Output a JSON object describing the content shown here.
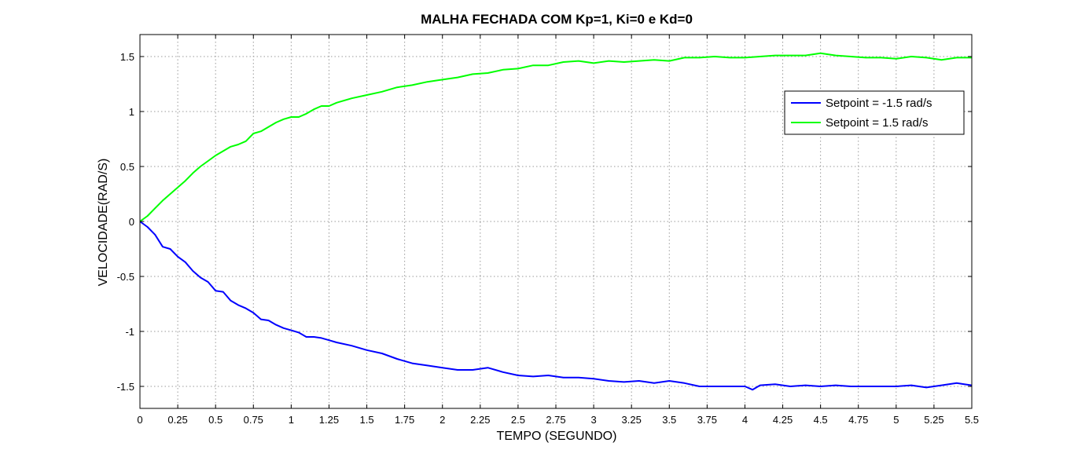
{
  "chart_data": {
    "type": "line",
    "title": "MALHA FECHADA COM Kp=1, Ki=0 e Kd=0",
    "xlabel": "TEMPO (SEGUNDO)",
    "ylabel": "VELOCIDADE(RAD/S)",
    "xlim": [
      0,
      5.5
    ],
    "ylim": [
      -1.7,
      1.7
    ],
    "xticks": [
      0,
      0.25,
      0.5,
      0.75,
      1,
      1.25,
      1.5,
      1.75,
      2,
      2.25,
      2.5,
      2.75,
      3,
      3.25,
      3.5,
      3.75,
      4,
      4.25,
      4.5,
      4.75,
      5,
      5.25,
      5.5
    ],
    "xtick_labels": [
      "0",
      "0.25",
      "0.5",
      "0.75",
      "1",
      "1.25",
      "1.5",
      "1.75",
      "2",
      "2.25",
      "2.5",
      "2.75",
      "3",
      "3.25",
      "3.5",
      "3.75",
      "4",
      "4.25",
      "4.5",
      "4.75",
      "5",
      "5.25",
      "5.5"
    ],
    "yticks": [
      -1.5,
      -1,
      -0.5,
      0,
      0.5,
      1,
      1.5
    ],
    "ytick_labels": [
      "-1.5",
      "-1",
      "-0.5",
      "0",
      "0.5",
      "1",
      "1.5"
    ],
    "grid": true,
    "legend_position": "top-right",
    "series": [
      {
        "name": "Setpoint = -1.5 rad/s",
        "color": "#0000ff",
        "x": [
          0,
          0.05,
          0.1,
          0.15,
          0.2,
          0.25,
          0.3,
          0.35,
          0.4,
          0.45,
          0.5,
          0.55,
          0.6,
          0.65,
          0.7,
          0.75,
          0.8,
          0.85,
          0.9,
          0.95,
          1,
          1.05,
          1.1,
          1.15,
          1.2,
          1.25,
          1.3,
          1.4,
          1.5,
          1.6,
          1.7,
          1.8,
          1.9,
          2,
          2.1,
          2.2,
          2.3,
          2.4,
          2.5,
          2.6,
          2.7,
          2.8,
          2.9,
          3,
          3.1,
          3.2,
          3.3,
          3.4,
          3.5,
          3.6,
          3.7,
          3.8,
          3.9,
          4,
          4.05,
          4.1,
          4.2,
          4.3,
          4.4,
          4.5,
          4.6,
          4.7,
          4.8,
          4.9,
          5,
          5.1,
          5.2,
          5.3,
          5.4,
          5.45,
          5.5
        ],
        "values": [
          0,
          -0.05,
          -0.12,
          -0.23,
          -0.25,
          -0.32,
          -0.37,
          -0.45,
          -0.51,
          -0.55,
          -0.63,
          -0.64,
          -0.72,
          -0.76,
          -0.79,
          -0.83,
          -0.89,
          -0.9,
          -0.94,
          -0.97,
          -0.99,
          -1.01,
          -1.05,
          -1.05,
          -1.06,
          -1.08,
          -1.1,
          -1.13,
          -1.17,
          -1.2,
          -1.25,
          -1.29,
          -1.31,
          -1.33,
          -1.35,
          -1.35,
          -1.33,
          -1.37,
          -1.4,
          -1.41,
          -1.4,
          -1.42,
          -1.42,
          -1.43,
          -1.45,
          -1.46,
          -1.45,
          -1.47,
          -1.45,
          -1.47,
          -1.5,
          -1.5,
          -1.5,
          -1.5,
          -1.53,
          -1.49,
          -1.48,
          -1.5,
          -1.49,
          -1.5,
          -1.49,
          -1.5,
          -1.5,
          -1.5,
          -1.5,
          -1.49,
          -1.51,
          -1.49,
          -1.47,
          -1.48,
          -1.49
        ]
      },
      {
        "name": "Setpoint = 1.5 rad/s",
        "color": "#00ff00",
        "x": [
          0,
          0.05,
          0.1,
          0.15,
          0.2,
          0.25,
          0.3,
          0.35,
          0.4,
          0.45,
          0.5,
          0.55,
          0.6,
          0.65,
          0.7,
          0.75,
          0.8,
          0.85,
          0.9,
          0.95,
          1,
          1.05,
          1.1,
          1.15,
          1.2,
          1.25,
          1.3,
          1.4,
          1.5,
          1.6,
          1.7,
          1.8,
          1.9,
          2,
          2.1,
          2.2,
          2.3,
          2.4,
          2.5,
          2.6,
          2.7,
          2.8,
          2.9,
          3,
          3.1,
          3.2,
          3.3,
          3.4,
          3.5,
          3.6,
          3.7,
          3.8,
          3.9,
          4,
          4.1,
          4.2,
          4.3,
          4.4,
          4.5,
          4.6,
          4.7,
          4.8,
          4.9,
          5,
          5.1,
          5.2,
          5.3,
          5.4,
          5.5
        ],
        "values": [
          0,
          0.05,
          0.12,
          0.19,
          0.25,
          0.31,
          0.37,
          0.44,
          0.5,
          0.55,
          0.6,
          0.64,
          0.68,
          0.7,
          0.73,
          0.8,
          0.82,
          0.86,
          0.9,
          0.93,
          0.95,
          0.95,
          0.98,
          1.02,
          1.05,
          1.05,
          1.08,
          1.12,
          1.15,
          1.18,
          1.22,
          1.24,
          1.27,
          1.29,
          1.31,
          1.34,
          1.35,
          1.38,
          1.39,
          1.42,
          1.42,
          1.45,
          1.46,
          1.44,
          1.46,
          1.45,
          1.46,
          1.47,
          1.46,
          1.49,
          1.49,
          1.5,
          1.49,
          1.49,
          1.5,
          1.51,
          1.51,
          1.51,
          1.53,
          1.51,
          1.5,
          1.49,
          1.49,
          1.48,
          1.5,
          1.49,
          1.47,
          1.49,
          1.49
        ]
      }
    ]
  }
}
